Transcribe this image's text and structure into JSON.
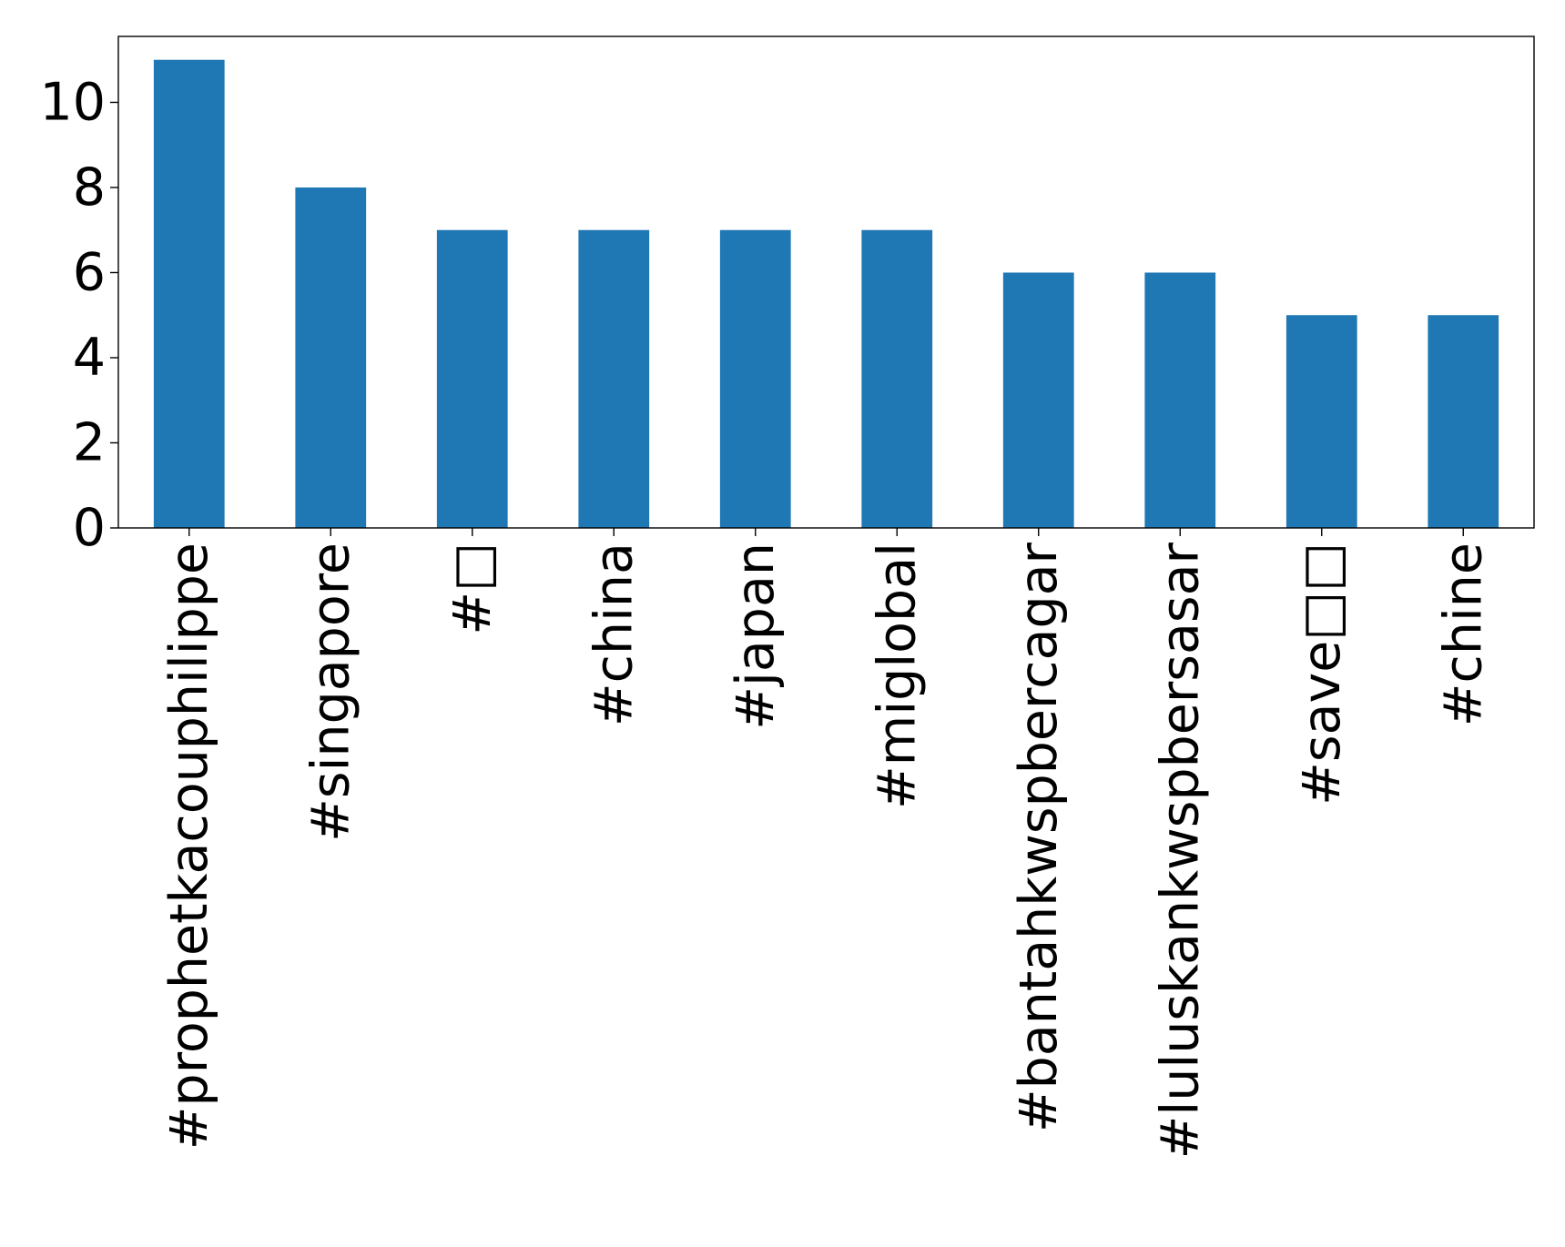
{
  "chart_data": {
    "type": "bar",
    "title": "",
    "xlabel": "",
    "ylabel": "",
    "categories": [
      "#prophetkacouphilippe",
      "#singapore",
      "#□",
      "#china",
      "#japan",
      "#miglobal",
      "#bantahkwspbercagar",
      "#luluskankwspbersasar",
      "#save□□",
      "#chine"
    ],
    "values": [
      11,
      8,
      7,
      7,
      7,
      7,
      6,
      6,
      5,
      5
    ],
    "ylim": [
      0,
      11.55
    ],
    "yticks": [
      0,
      2,
      4,
      6,
      8,
      10
    ],
    "ytick_labels": [
      "0",
      "2",
      "4",
      "6",
      "8",
      "10"
    ],
    "bar_color": "#1f77b4",
    "grid": false,
    "legend": "none",
    "x_tick_rotation": "vertical"
  }
}
